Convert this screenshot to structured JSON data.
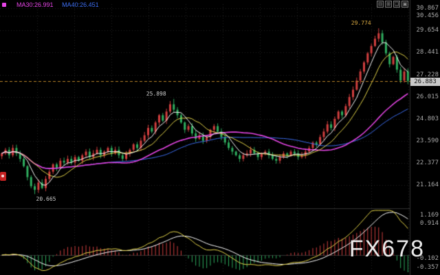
{
  "header": {
    "ma30_label": "MA30:26.991",
    "ma40_label": "MA40:26.451"
  },
  "toolbar": {
    "glyphs": [
      "⊟",
      "⊞",
      "❏",
      "▣"
    ]
  },
  "watermark": "FX678",
  "axis": {
    "current_price": "26.883",
    "main_labels": [
      "30.867",
      "30.456",
      "29.654",
      "28.441",
      "27.228",
      "26.015",
      "24.803",
      "23.590",
      "22.377",
      "21.164"
    ],
    "sub_labels": [
      "1.169",
      "0.914",
      "-0.102",
      "-0.357"
    ]
  },
  "annotations": [
    {
      "text": "29.774",
      "index": 103,
      "price": 29.774,
      "placement": "above",
      "color": "#d8a840"
    },
    {
      "text": "25.898",
      "index": 47,
      "price": 25.898,
      "placement": "above",
      "color": "#cccccc"
    },
    {
      "text": "20.665",
      "index": 9,
      "price": 20.665,
      "placement": "below",
      "color": "#cccccc"
    }
  ],
  "colors": {
    "up": "#d23f3f",
    "down": "#2fae5f",
    "ma5": "#ffffff",
    "ma10": "#e8d84a",
    "ma30": "#e645e6",
    "ma40": "#3c6df0",
    "grid": "#232323",
    "axis_line": "#333333",
    "dashed_price_line": "#c08a2a",
    "macd_dif": "#e8d84a",
    "macd_dea": "#ffffff",
    "hist_up": "#d23f3f",
    "hist_down": "#2fae5f"
  },
  "chart_data": {
    "type": "candlestick+macd",
    "title": "",
    "current_price": 26.883,
    "main_range": [
      20.0,
      31.1
    ],
    "sub_range": [
      -0.5,
      1.3
    ],
    "closes": [
      22.9,
      23.1,
      22.8,
      23.2,
      22.9,
      22.6,
      22.2,
      21.6,
      21.1,
      20.9,
      21.3,
      21.0,
      21.5,
      21.9,
      22.3,
      22.1,
      22.5,
      22.4,
      22.6,
      22.4,
      22.7,
      22.5,
      22.8,
      23.0,
      22.7,
      22.9,
      23.1,
      22.8,
      23.0,
      23.2,
      22.9,
      23.1,
      22.8,
      22.6,
      22.9,
      23.1,
      23.4,
      23.2,
      23.6,
      23.9,
      24.3,
      24.1,
      24.6,
      25.0,
      24.7,
      25.2,
      25.6,
      25.3,
      25.0,
      24.6,
      24.2,
      24.4,
      24.0,
      23.7,
      23.9,
      23.6,
      23.8,
      24.2,
      24.4,
      24.1,
      23.8,
      23.5,
      23.2,
      23.0,
      22.8,
      22.6,
      22.8,
      22.9,
      23.1,
      22.9,
      22.7,
      22.9,
      23.0,
      22.8,
      22.6,
      22.5,
      22.7,
      22.9,
      22.8,
      23.0,
      22.9,
      22.7,
      22.8,
      23.0,
      23.2,
      23.5,
      23.4,
      23.8,
      24.1,
      24.5,
      24.3,
      24.8,
      25.2,
      25.0,
      25.5,
      26.0,
      26.4,
      26.9,
      27.4,
      27.9,
      28.4,
      28.8,
      29.2,
      29.5,
      29.0,
      28.4,
      27.8,
      28.2,
      27.5,
      26.9,
      27.4,
      26.883
    ],
    "low_overrides": {
      "9": 20.665
    },
    "high_overrides": {
      "47": 25.898,
      "103": 29.774
    },
    "ma_periods": {
      "ma5": 5,
      "ma10": 10,
      "ma30": 30,
      "ma40": 40
    },
    "macd": {
      "fast": 12,
      "slow": 26,
      "signal": 9
    }
  }
}
